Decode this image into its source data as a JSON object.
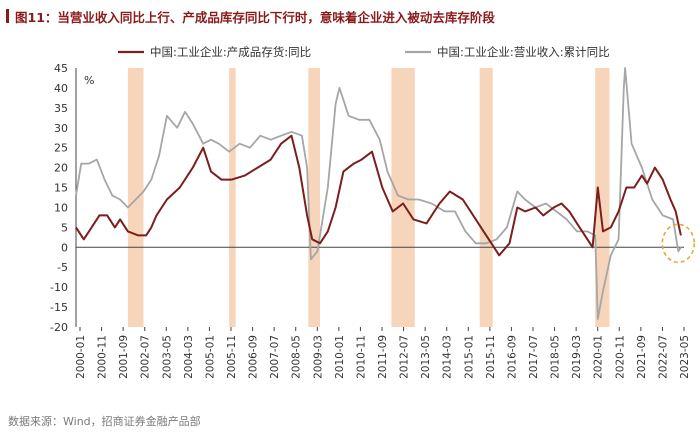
{
  "figure": {
    "title": "图11：当营业收入同比上行、产成品库存同比下行时，意味着企业进入被动去库存阶段",
    "source": "数据来源：Wind，招商证券金融产品部"
  },
  "colors": {
    "title": "#8b1a1a",
    "inventory_line": "#7b1e1e",
    "revenue_line": "#a6a6a6",
    "highlight_band": "#f6d5bb",
    "highlight_circle": "#e8a838",
    "axis": "#444444"
  },
  "chart_data": {
    "type": "line",
    "y_unit": "%",
    "ylim": [
      -20,
      45
    ],
    "yticks": [
      45,
      40,
      35,
      30,
      25,
      20,
      15,
      10,
      5,
      0,
      -5,
      -10,
      -15,
      -20
    ],
    "xlim": [
      2000.0,
      2023.42
    ],
    "xticks": [
      "2000-01",
      "2000-11",
      "2001-09",
      "2002-07",
      "2003-05",
      "2004-03",
      "2005-01",
      "2005-11",
      "2006-09",
      "2007-07",
      "2008-05",
      "2009-03",
      "2010-01",
      "2010-11",
      "2011-09",
      "2012-07",
      "2013-05",
      "2014-03",
      "2015-01",
      "2015-11",
      "2016-09",
      "2017-07",
      "2018-05",
      "2019-03",
      "2020-01",
      "2020-11",
      "2021-09",
      "2022-07",
      "2023-05"
    ],
    "legend_position": "top",
    "grid": false,
    "highlight_periods": [
      [
        2002.0,
        2002.6
      ],
      [
        2005.9,
        2006.15
      ],
      [
        2008.95,
        2009.4
      ],
      [
        2012.15,
        2013.05
      ],
      [
        2015.55,
        2016.05
      ],
      [
        2020.0,
        2020.55
      ]
    ],
    "highlight_circle_center": [
      2023.2,
      1
    ],
    "series": [
      {
        "name": "中国:工业企业:产成品存货:同比",
        "color": "#7b1e1e",
        "x": [
          2000.0,
          2000.3,
          2000.6,
          2000.9,
          2001.2,
          2001.5,
          2001.7,
          2002.0,
          2002.4,
          2002.7,
          2002.9,
          2003.1,
          2003.5,
          2004.0,
          2004.5,
          2004.9,
          2005.2,
          2005.6,
          2006.0,
          2006.5,
          2007.0,
          2007.5,
          2007.9,
          2008.3,
          2008.6,
          2008.9,
          2009.1,
          2009.4,
          2009.7,
          2010.0,
          2010.3,
          2010.7,
          2011.0,
          2011.4,
          2011.8,
          2012.2,
          2012.6,
          2013.0,
          2013.5,
          2014.0,
          2014.4,
          2014.9,
          2015.3,
          2015.7,
          2016.0,
          2016.3,
          2016.7,
          2017.0,
          2017.3,
          2017.7,
          2018.0,
          2018.4,
          2018.7,
          2019.0,
          2019.3,
          2019.7,
          2019.9,
          2020.1,
          2020.3,
          2020.6,
          2020.9,
          2021.2,
          2021.5,
          2021.8,
          2022.0,
          2022.3,
          2022.6,
          2022.9,
          2023.1,
          2023.3
        ],
        "y": [
          5,
          2,
          5,
          8,
          8,
          5,
          7,
          4,
          3,
          3,
          5,
          8,
          12,
          15,
          20,
          25,
          19,
          17,
          17,
          18,
          20,
          22,
          26,
          28,
          20,
          8,
          2,
          1,
          4,
          10,
          19,
          21,
          22,
          24,
          15,
          9,
          11,
          7,
          6,
          11,
          14,
          12,
          8,
          4,
          1,
          -2,
          1,
          10,
          9,
          10,
          8,
          10,
          11,
          9,
          6,
          2,
          0,
          15,
          4,
          5,
          9,
          15,
          15,
          18,
          16,
          20,
          17,
          12,
          9,
          3
        ]
      },
      {
        "name": "中国:工业企业:营业收入:累计同比",
        "color": "#a6a6a6",
        "x": [
          2000.0,
          2000.2,
          2000.5,
          2000.8,
          2001.1,
          2001.4,
          2001.7,
          2002.0,
          2002.3,
          2002.6,
          2002.9,
          2003.2,
          2003.5,
          2003.9,
          2004.2,
          2004.5,
          2004.9,
          2005.2,
          2005.5,
          2005.9,
          2006.3,
          2006.7,
          2007.1,
          2007.5,
          2007.9,
          2008.3,
          2008.7,
          2008.9,
          2009.05,
          2009.3,
          2009.7,
          2010.0,
          2010.15,
          2010.5,
          2010.9,
          2011.3,
          2011.7,
          2012.0,
          2012.4,
          2012.8,
          2013.2,
          2013.7,
          2014.2,
          2014.6,
          2015.0,
          2015.4,
          2015.8,
          2016.2,
          2016.6,
          2017.0,
          2017.3,
          2017.7,
          2018.1,
          2018.5,
          2018.9,
          2019.3,
          2019.7,
          2020.0,
          2020.1,
          2020.3,
          2020.6,
          2020.9,
          2021.1,
          2021.15,
          2021.4,
          2021.8,
          2022.2,
          2022.6,
          2023.0,
          2023.2,
          2023.3
        ],
        "y": [
          13,
          21,
          21,
          22,
          17,
          13,
          12,
          10,
          12,
          14,
          17,
          23,
          33,
          30,
          34,
          31,
          26,
          27,
          26,
          24,
          26,
          25,
          28,
          27,
          28,
          29,
          28,
          20,
          -3,
          -1,
          15,
          36,
          40,
          33,
          32,
          32,
          27,
          19,
          13,
          12,
          12,
          11,
          9,
          9,
          4,
          1,
          1,
          2,
          5,
          14,
          12,
          10,
          11,
          9,
          7,
          4,
          4,
          3,
          -18,
          -11,
          -2,
          2,
          40,
          45,
          26,
          20,
          12,
          8,
          7,
          -1,
          0
        ]
      }
    ]
  }
}
